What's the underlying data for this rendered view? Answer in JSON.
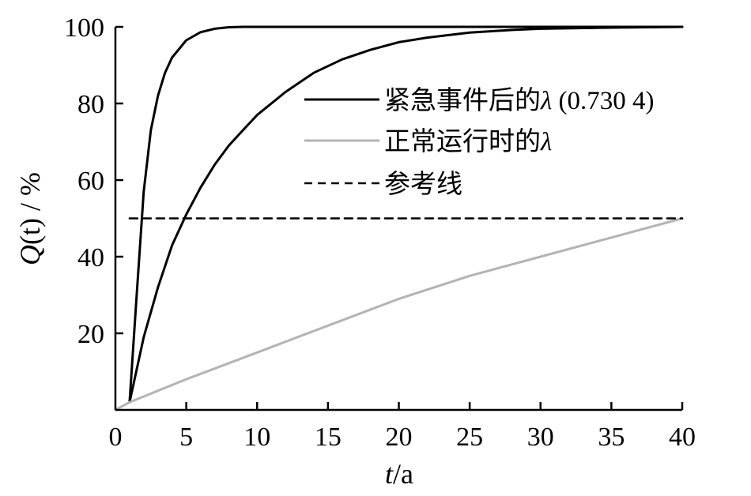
{
  "chart_data": {
    "type": "line",
    "xlabel_var": "t",
    "xlabel_unit": "/a",
    "ylabel_var": "Q",
    "ylabel_arg": "(t)",
    "ylabel_unit": " / %",
    "xlim": [
      0,
      40
    ],
    "ylim": [
      0,
      100
    ],
    "xticks": [
      0,
      5,
      10,
      15,
      20,
      25,
      30,
      35,
      40
    ],
    "yticks": [
      20,
      40,
      60,
      80,
      100
    ],
    "grid": false,
    "legend_position": "right",
    "series": [
      {
        "name": "紧急事件后的λ (0.730 4)",
        "name_text": "紧急事件后的",
        "name_symbol": "λ",
        "name_value": " (0.730 4)",
        "color": "#000000",
        "style": "solid",
        "x": [
          1,
          1.5,
          2,
          2.5,
          3,
          3.5,
          4,
          5,
          6,
          7,
          8,
          9,
          10,
          40
        ],
        "y": [
          2,
          30,
          57,
          73,
          82,
          88,
          92,
          96.5,
          98.6,
          99.5,
          99.9,
          100,
          100,
          100
        ]
      },
      {
        "name": "",
        "color": "#000000",
        "style": "solid",
        "x": [
          1,
          2,
          3,
          4,
          5,
          6,
          7,
          8,
          9,
          10,
          12,
          14,
          16,
          18,
          20,
          22,
          25,
          28,
          30,
          35,
          40
        ],
        "y": [
          2,
          19,
          32,
          43,
          51,
          58,
          64,
          69,
          73,
          77,
          83,
          88,
          91.5,
          94,
          96,
          97.2,
          98.5,
          99.2,
          99.5,
          99.8,
          100
        ]
      },
      {
        "name": "正常运行时的λ",
        "name_text": "正常运行时的",
        "name_symbol": "λ",
        "color": "#b4b4b4",
        "style": "solid",
        "x": [
          0,
          1,
          5,
          10,
          15,
          20,
          25,
          30,
          35,
          40
        ],
        "y": [
          0,
          2,
          8,
          15,
          22,
          29,
          35,
          40,
          45,
          50
        ]
      },
      {
        "name": "参考线",
        "color": "#000000",
        "style": "dashed",
        "x": [
          1,
          40
        ],
        "y": [
          50,
          50
        ]
      }
    ]
  }
}
